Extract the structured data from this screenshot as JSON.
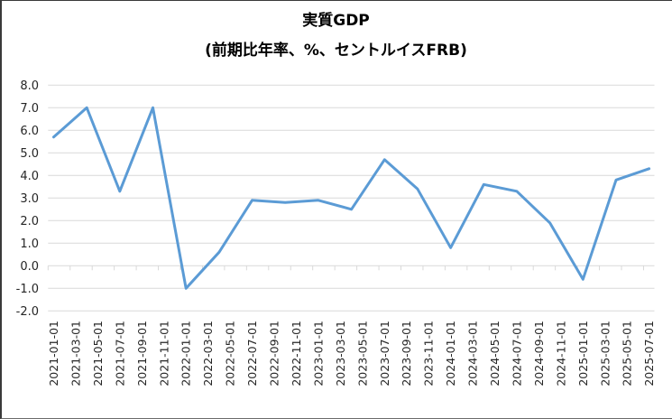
{
  "title": {
    "line1": "実質GDP",
    "line2": "(前期比年率、%、セントルイスFRB)"
  },
  "colors": {
    "series": "#5B9BD5",
    "grid": "#D9D9D9",
    "axis_text": "#262626",
    "border": "#595959"
  },
  "chart_data": {
    "type": "line",
    "title": "実質GDP (前期比年率、%、セントルイスFRB)",
    "xlabel": "",
    "ylabel": "",
    "ylim": [
      -2.0,
      8.0
    ],
    "yticks": [
      "8.0",
      "7.0",
      "6.0",
      "5.0",
      "4.0",
      "3.0",
      "2.0",
      "1.0",
      "0.0",
      "-1.0",
      "-2.0"
    ],
    "ytick_values": [
      8,
      7,
      6,
      5,
      4,
      3,
      2,
      1,
      0,
      -1,
      -2
    ],
    "grid": true,
    "legend": "none",
    "x_tick_labels": [
      "2021-01-01",
      "2021-03-01",
      "2021-05-01",
      "2021-07-01",
      "2021-09-01",
      "2021-11-01",
      "2022-01-01",
      "2022-03-01",
      "2022-05-01",
      "2022-07-01",
      "2022-09-01",
      "2022-11-01",
      "2023-01-01",
      "2023-03-01",
      "2023-05-01",
      "2023-07-01",
      "2023-09-01",
      "2023-11-01",
      "2024-01-01",
      "2024-03-01",
      "2024-05-01",
      "2024-07-01",
      "2024-09-01",
      "2024-11-01",
      "2025-01-01",
      "2025-03-01",
      "2025-05-01",
      "2025-07-01"
    ],
    "x": [
      "2021-01-01",
      "2021-04-01",
      "2021-07-01",
      "2021-10-01",
      "2022-01-01",
      "2022-04-01",
      "2022-07-01",
      "2022-10-01",
      "2023-01-01",
      "2023-04-01",
      "2023-07-01",
      "2023-10-01",
      "2024-01-01",
      "2024-04-01",
      "2024-07-01",
      "2024-10-01",
      "2025-01-01",
      "2025-04-01",
      "2025-07-01"
    ],
    "series": [
      {
        "name": "実質GDP",
        "values": [
          5.7,
          7.0,
          3.3,
          7.0,
          -1.0,
          0.6,
          2.9,
          2.8,
          2.9,
          2.5,
          4.7,
          3.4,
          0.8,
          3.6,
          3.3,
          1.9,
          -0.6,
          3.8,
          4.3
        ]
      }
    ]
  }
}
